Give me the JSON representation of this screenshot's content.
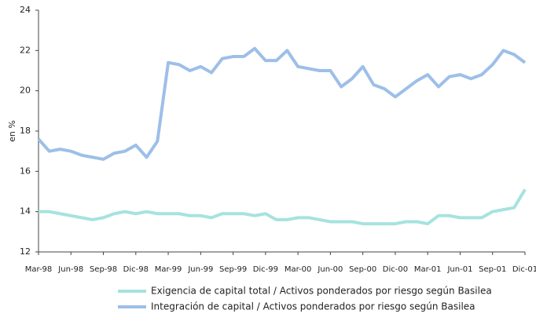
{
  "chart_data": {
    "type": "line",
    "ylabel": "en %",
    "categories": [
      "Mar-98",
      null,
      null,
      "Jun-98",
      null,
      null,
      "Sep-98",
      null,
      null,
      "Dic-98",
      null,
      null,
      "Mar-99",
      null,
      null,
      "Jun-99",
      null,
      null,
      "Sep-99",
      null,
      null,
      "Dic-99",
      null,
      null,
      "Mar-00",
      null,
      null,
      "Jun-00",
      null,
      null,
      "Sep-00",
      null,
      null,
      "Dic-00",
      null,
      null,
      "Mar-01",
      null,
      null,
      "Jun-01",
      null,
      null,
      "Sep-01",
      null,
      null,
      "Dic-01"
    ],
    "series": [
      {
        "name": "Exigencia de capital total / Activos ponderados por riesgo según Basilea",
        "color": "#a5e3df",
        "values": [
          14.0,
          14.0,
          13.9,
          13.8,
          13.7,
          13.6,
          13.7,
          13.9,
          14.0,
          13.9,
          14.0,
          13.9,
          13.9,
          13.9,
          13.8,
          13.8,
          13.7,
          13.9,
          13.9,
          13.9,
          13.8,
          13.9,
          13.6,
          13.6,
          13.7,
          13.7,
          13.6,
          13.5,
          13.5,
          13.5,
          13.4,
          13.4,
          13.4,
          13.4,
          13.5,
          13.5,
          13.4,
          13.8,
          13.8,
          13.7,
          13.7,
          13.7,
          14.0,
          14.1,
          14.2,
          15.1
        ]
      },
      {
        "name": "Integración de capital / Activos ponderados por riesgo según Basilea",
        "color": "#9dbfe8",
        "values": [
          17.6,
          17.0,
          17.1,
          17.0,
          16.8,
          16.7,
          16.6,
          16.9,
          17.0,
          17.3,
          16.7,
          17.5,
          21.4,
          21.3,
          21.0,
          21.2,
          20.9,
          21.6,
          21.7,
          21.7,
          22.1,
          21.5,
          21.5,
          22.0,
          21.2,
          21.1,
          21.0,
          21.0,
          20.2,
          20.6,
          21.2,
          20.3,
          20.1,
          19.7,
          20.1,
          20.5,
          20.8,
          20.2,
          20.7,
          20.8,
          20.6,
          20.8,
          21.3,
          22.0,
          21.8,
          21.4
        ]
      }
    ],
    "ylim": [
      12,
      24
    ],
    "yticks": [
      12,
      14,
      16,
      18,
      20,
      22,
      24
    ],
    "grid": false,
    "legend": "bottom"
  }
}
